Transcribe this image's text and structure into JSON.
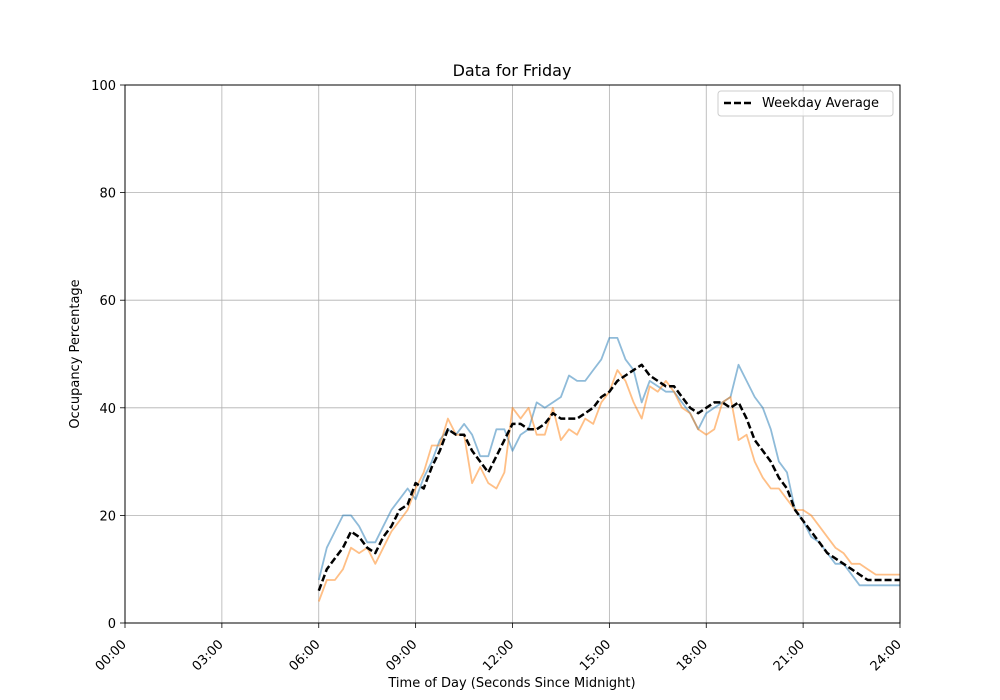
{
  "chart_data": {
    "type": "line",
    "title": "Data for Friday",
    "xlabel": "Time of Day (Seconds Since Midnight)",
    "ylabel": "Occupancy Percentage",
    "xlim": [
      0,
      86400
    ],
    "ylim": [
      0,
      100
    ],
    "grid": true,
    "legend_position": "top-right",
    "x_ticks": [
      0,
      10800,
      21600,
      32400,
      43200,
      54000,
      64800,
      75600,
      86400
    ],
    "x_tick_labels": [
      "00:00",
      "03:00",
      "06:00",
      "09:00",
      "12:00",
      "15:00",
      "18:00",
      "21:00",
      "24:00"
    ],
    "y_ticks": [
      0,
      20,
      40,
      60,
      80,
      100
    ],
    "y_tick_labels": [
      "0",
      "20",
      "40",
      "60",
      "80",
      "100"
    ],
    "series": [
      {
        "name": "",
        "color": "#1f77b4",
        "opacity": 0.5,
        "style": "solid",
        "x_hours": [
          6,
          6.25,
          6.5,
          6.75,
          7,
          7.25,
          7.5,
          7.75,
          8,
          8.25,
          8.5,
          8.75,
          9,
          9.25,
          9.5,
          9.75,
          10,
          10.25,
          10.5,
          10.75,
          11,
          11.25,
          11.5,
          11.75,
          12,
          12.25,
          12.5,
          12.75,
          13,
          13.25,
          13.5,
          13.75,
          14,
          14.25,
          14.5,
          14.75,
          15,
          15.25,
          15.5,
          15.75,
          16,
          16.25,
          16.5,
          16.75,
          17,
          17.25,
          17.5,
          17.75,
          18,
          18.25,
          18.5,
          18.75,
          19,
          19.25,
          19.5,
          19.75,
          20,
          20.25,
          20.5,
          20.75,
          21,
          21.25,
          21.5,
          21.75,
          22,
          22.25,
          22.5,
          22.75,
          23,
          23.25,
          23.5,
          23.75,
          24
        ],
        "values": [
          8,
          14,
          17,
          20,
          20,
          18,
          15,
          15,
          18,
          21,
          23,
          25,
          23,
          27,
          30,
          34,
          36,
          35,
          37,
          35,
          31,
          31,
          36,
          36,
          32,
          35,
          36,
          41,
          40,
          41,
          42,
          46,
          45,
          45,
          47,
          49,
          53,
          53,
          49,
          47,
          41,
          45,
          44,
          43,
          43,
          41,
          39,
          36,
          39,
          40,
          41,
          42,
          48,
          45,
          42,
          40,
          36,
          30,
          28,
          21,
          19,
          16,
          15,
          13,
          11,
          11,
          9,
          7,
          7,
          7,
          7,
          7,
          7
        ]
      },
      {
        "name": "",
        "color": "#ff7f0e",
        "opacity": 0.5,
        "style": "solid",
        "x_hours": [
          6,
          6.25,
          6.5,
          6.75,
          7,
          7.25,
          7.5,
          7.75,
          8,
          8.25,
          8.5,
          8.75,
          9,
          9.25,
          9.5,
          9.75,
          10,
          10.25,
          10.5,
          10.75,
          11,
          11.25,
          11.5,
          11.75,
          12,
          12.25,
          12.5,
          12.75,
          13,
          13.25,
          13.5,
          13.75,
          14,
          14.25,
          14.5,
          14.75,
          15,
          15.25,
          15.5,
          15.75,
          16,
          16.25,
          16.5,
          16.75,
          17,
          17.25,
          17.5,
          17.75,
          18,
          18.25,
          18.5,
          18.75,
          19,
          19.25,
          19.5,
          19.75,
          20,
          20.25,
          20.5,
          20.75,
          21,
          21.25,
          21.5,
          21.75,
          22,
          22.25,
          22.5,
          22.75,
          23,
          23.25,
          23.5,
          23.75,
          24
        ],
        "values": [
          4,
          8,
          8,
          10,
          14,
          13,
          14,
          11,
          14,
          17,
          19,
          21,
          25,
          28,
          33,
          33,
          38,
          35,
          35,
          26,
          29,
          26,
          25,
          28,
          40,
          38,
          40,
          35,
          35,
          40,
          34,
          36,
          35,
          38,
          37,
          41,
          43,
          47,
          45,
          41,
          38,
          44,
          43,
          45,
          43,
          40,
          39,
          36,
          35,
          36,
          41,
          42,
          34,
          35,
          30,
          27,
          25,
          25,
          23,
          21,
          21,
          20,
          18,
          16,
          14,
          13,
          11,
          11,
          10,
          9,
          9,
          9,
          9
        ]
      },
      {
        "name": "Weekday Average",
        "color": "#000000",
        "opacity": 1,
        "style": "dashed",
        "x_hours": [
          6,
          6.25,
          6.5,
          6.75,
          7,
          7.25,
          7.5,
          7.75,
          8,
          8.25,
          8.5,
          8.75,
          9,
          9.25,
          9.5,
          9.75,
          10,
          10.25,
          10.5,
          10.75,
          11,
          11.25,
          11.5,
          11.75,
          12,
          12.25,
          12.5,
          12.75,
          13,
          13.25,
          13.5,
          13.75,
          14,
          14.25,
          14.5,
          14.75,
          15,
          15.25,
          15.5,
          15.75,
          16,
          16.25,
          16.5,
          16.75,
          17,
          17.25,
          17.5,
          17.75,
          18,
          18.25,
          18.5,
          18.75,
          19,
          19.25,
          19.5,
          19.75,
          20,
          20.25,
          20.5,
          20.75,
          21,
          21.25,
          21.5,
          21.75,
          22,
          22.25,
          22.5,
          22.75,
          23,
          23.25,
          23.5,
          23.75,
          24
        ],
        "values": [
          6,
          10,
          12,
          14,
          17,
          16,
          14,
          13,
          16,
          18,
          21,
          22,
          26,
          25,
          29,
          32,
          36,
          35,
          35,
          32,
          30,
          28,
          31,
          34,
          37,
          37,
          36,
          36,
          37,
          39,
          38,
          38,
          38,
          39,
          40,
          42,
          43,
          45,
          46,
          47,
          48,
          46,
          45,
          44,
          44,
          42,
          40,
          39,
          40,
          41,
          41,
          40,
          41,
          38,
          34,
          32,
          30,
          27,
          25,
          21,
          19,
          17,
          15,
          13,
          12,
          11,
          10,
          9,
          8,
          8,
          8,
          8,
          8
        ]
      }
    ]
  }
}
